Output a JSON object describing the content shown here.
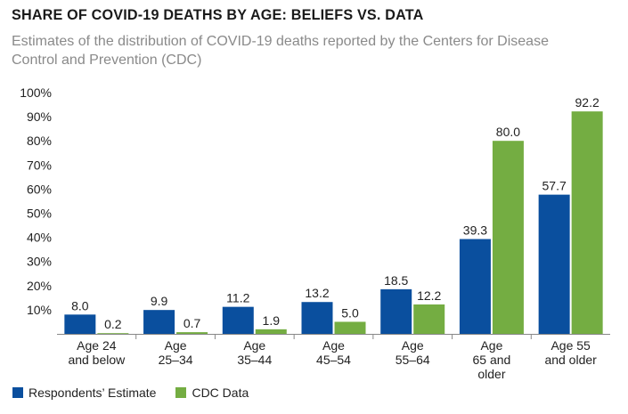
{
  "colors": {
    "estimate": "#0a4f9e",
    "cdc": "#74ad42",
    "axis": "#888888"
  },
  "chart_data": {
    "type": "bar",
    "title": "SHARE OF COVID-19 DEATHS BY AGE: BELIEFS VS. DATA",
    "subtitle": "Estimates of the distribution of COVID-19 deaths reported by the Centers for Disease Control and Prevention (CDC)",
    "xlabel": "",
    "ylabel": "",
    "ylim": [
      0,
      100
    ],
    "yticks": [
      "10%",
      "20%",
      "30%",
      "40%",
      "50%",
      "60%",
      "70%",
      "80%",
      "90%",
      "100%"
    ],
    "grid": false,
    "legend_position": "bottom-left",
    "categories": [
      [
        "Age 24",
        "and below"
      ],
      [
        "Age",
        "25–34"
      ],
      [
        "Age",
        "35–44"
      ],
      [
        "Age",
        "45–54"
      ],
      [
        "Age",
        "55–64"
      ],
      [
        "Age",
        "65 and",
        "older"
      ],
      [
        "Age 55",
        "and older"
      ]
    ],
    "series": [
      {
        "name": "Respondents’ Estimate",
        "values": [
          8.0,
          9.9,
          11.2,
          13.2,
          18.5,
          39.3,
          57.7
        ],
        "labels": [
          "8.0",
          "9.9",
          "11.2",
          "13.2",
          "18.5",
          "39.3",
          "57.7"
        ]
      },
      {
        "name": "CDC Data",
        "values": [
          0.2,
          0.7,
          1.9,
          5.0,
          12.2,
          80.0,
          92.2
        ],
        "labels": [
          "0.2",
          "0.7",
          "1.9",
          "5.0",
          "12.2",
          "80.0",
          "92.2"
        ]
      }
    ]
  }
}
